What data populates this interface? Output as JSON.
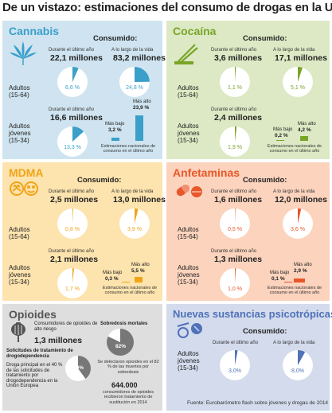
{
  "title": "De un vistazo: estimaciones del consumo de drogas en la UE",
  "labels": {
    "consumido": "Consumido:",
    "ultimo_ano": "Durante el último año",
    "vida": "A lo largo de la vida",
    "adultos": "Adultos (15-64)",
    "jovenes": "Adultos jóvenes (15-34)",
    "mas_alto": "Más alto",
    "mas_bajo": "Más bajo",
    "estimaciones": "Estimaciones nacionales de consumo en el último año"
  },
  "colors": {
    "cannabis_bg": "#cfe4f0",
    "cocaina_bg": "#dce9c4",
    "mdma_bg": "#fde3ae",
    "anfetaminas_bg": "#fcd3bd",
    "opioides_bg": "#dedede",
    "nps_bg": "#d3dbec",
    "cannabis_accent": "#3a9fc9",
    "cocaina_accent": "#7aa428",
    "mdma_accent": "#f0a418",
    "anfetaminas_accent": "#e8572a",
    "opioides_accent": "#555555",
    "nps_accent": "#4f72b8"
  },
  "footer": "Fuente: Eurobarómetro flash sobre jóvenes y drogas de 2014",
  "chart_data": [
    {
      "type": "pie",
      "panel": "Cannabis",
      "adultos": {
        "ultimo_ano": {
          "millones": "22,1 millones",
          "pct": 6.6,
          "label": "6,6 %"
        },
        "vida": {
          "millones": "83,2 millones",
          "pct": 24.8,
          "label": "24,8 %"
        }
      },
      "jovenes": {
        "ultimo_ano": {
          "millones": "16,6 millones",
          "pct": 13.3,
          "label": "13,3 %"
        }
      },
      "range": {
        "min": 3.2,
        "min_label": "3,2 %",
        "max": 23.9,
        "max_label": "23,9 %"
      }
    },
    {
      "type": "pie",
      "panel": "Cocaína",
      "adultos": {
        "ultimo_ano": {
          "millones": "3,6 millones",
          "pct": 1.1,
          "label": "1,1 %"
        },
        "vida": {
          "millones": "17,1 millones",
          "pct": 5.1,
          "label": "5,1 %"
        }
      },
      "jovenes": {
        "ultimo_ano": {
          "millones": "2,4 millones",
          "pct": 1.9,
          "label": "1,9 %"
        }
      },
      "range": {
        "min": 0.2,
        "min_label": "0,2 %",
        "max": 4.2,
        "max_label": "4,2 %"
      }
    },
    {
      "type": "pie",
      "panel": "MDMA",
      "adultos": {
        "ultimo_ano": {
          "millones": "2,5 millones",
          "pct": 0.8,
          "label": "0,8 %"
        },
        "vida": {
          "millones": "13,0 millones",
          "pct": 3.9,
          "label": "3,9 %"
        }
      },
      "jovenes": {
        "ultimo_ano": {
          "millones": "2,1 millones",
          "pct": 1.7,
          "label": "1,7 %"
        }
      },
      "range": {
        "min": 0.3,
        "min_label": "0,3 %",
        "max": 5.5,
        "max_label": "5,5 %"
      }
    },
    {
      "type": "pie",
      "panel": "Anfetaminas",
      "adultos": {
        "ultimo_ano": {
          "millones": "1,6 millones",
          "pct": 0.5,
          "label": "0,5 %"
        },
        "vida": {
          "millones": "12,0 millones",
          "pct": 3.6,
          "label": "3,6 %"
        }
      },
      "jovenes": {
        "ultimo_ano": {
          "millones": "1,3 millones",
          "pct": 1.0,
          "label": "1,0 %"
        }
      },
      "range": {
        "min": 0.1,
        "min_label": "0,1 %",
        "max": 2.9,
        "max_label": "2,9 %"
      }
    },
    {
      "type": "pie",
      "panel": "Opioides",
      "consumidores_label": "Consumidores de opioides de alto riesgo",
      "consumidores": "1,3 millones",
      "solicitudes_label": "Solicitudes de tratamiento de drogodependencia",
      "droga_text": "Droga principal en el 40 % de las solicitudes de tratamiento por drogodependencia en la Unión Europea",
      "droga_pct": 40,
      "droga_pct_label": "40%",
      "sobredosis_label": "Sobredosis mortales",
      "sobredosis_pct": 82,
      "sobredosis_pct_label": "82%",
      "sobredosis_text": "Se detectaron opioides en el 82 % de las muertes por sobredosis",
      "sustitucion_num": "644.000",
      "sustitucion_text": "consumidores de opioides recibieron tratamiento de sustitución en 2014"
    },
    {
      "type": "pie",
      "panel": "Nuevas sustancias psicotrópicas",
      "jovenes": {
        "ultimo_ano": {
          "pct": 3.0,
          "label": "3,0%"
        },
        "vida": {
          "pct": 8.0,
          "label": "8,0%"
        }
      }
    }
  ]
}
